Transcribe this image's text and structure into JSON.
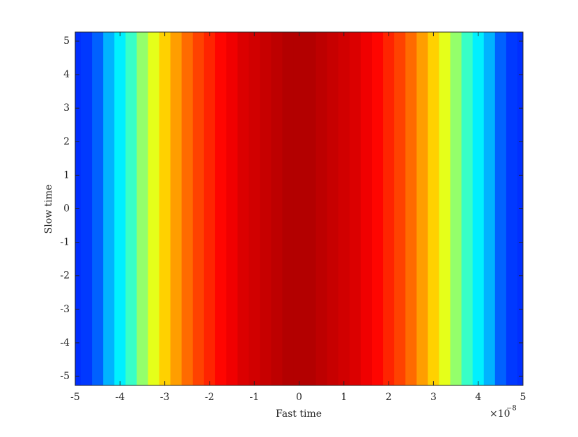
{
  "chart_data": {
    "type": "heatmap",
    "xlabel": "Fast time",
    "ylabel": "Slow time",
    "x_multiplier": {
      "base": "×10",
      "exponent": "−8"
    },
    "colormap": "jet",
    "x": [
      -5,
      -4.75,
      -4.5,
      -4.25,
      -4,
      -3.75,
      -3.5,
      -3.25,
      -3,
      -2.75,
      -2.5,
      -2.25,
      -2,
      -1.75,
      -1.5,
      -1.25,
      -1,
      -0.75,
      -0.5,
      -0.25,
      0,
      0.25,
      0.5,
      0.75,
      1,
      1.25,
      1.5,
      1.75,
      2,
      2.25,
      2.5,
      2.75,
      3,
      3.25,
      3.5,
      3.75,
      4,
      4.25,
      4.5,
      4.75,
      5
    ],
    "values": [
      0.17,
      0.18,
      0.22,
      0.3,
      0.36,
      0.43,
      0.52,
      0.6,
      0.67,
      0.72,
      0.77,
      0.81,
      0.84,
      0.87,
      0.89,
      0.91,
      0.92,
      0.93,
      0.94,
      0.95,
      0.95,
      0.95,
      0.94,
      0.93,
      0.92,
      0.91,
      0.89,
      0.87,
      0.84,
      0.81,
      0.77,
      0.72,
      0.67,
      0.6,
      0.52,
      0.43,
      0.36,
      0.3,
      0.22,
      0.18,
      0.17
    ],
    "xlim": [
      -5,
      5
    ],
    "xticks": [
      -5,
      -4,
      -3,
      -2,
      -1,
      0,
      1,
      2,
      3,
      4,
      5
    ],
    "ylim": [
      -5.27,
      5.27
    ],
    "yticks": [
      -5,
      -4,
      -3,
      -2,
      -1,
      0,
      1,
      2,
      3,
      4,
      5
    ]
  }
}
